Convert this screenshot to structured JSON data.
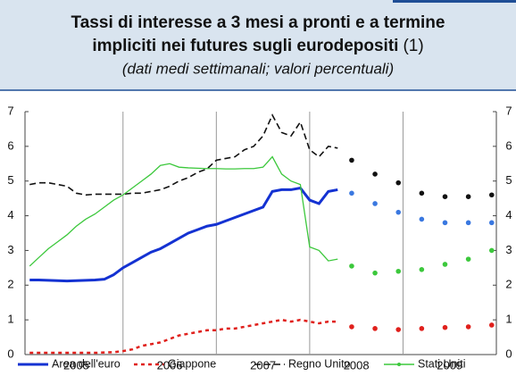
{
  "chart_data": {
    "type": "line",
    "title": "Tassi di interesse a 3 mesi a pronti e a termine impliciti nei futures sugli eurodepositi",
    "title_note": "(1)",
    "subtitle": "(dati medi settimanali; valori percentuali)",
    "x": [
      2005.0,
      2005.1,
      2005.2,
      2005.3,
      2005.4,
      2005.5,
      2005.6,
      2005.7,
      2005.8,
      2005.9,
      2006.0,
      2006.1,
      2006.2,
      2006.3,
      2006.4,
      2006.5,
      2006.6,
      2006.7,
      2006.8,
      2006.9,
      2007.0,
      2007.1,
      2007.2,
      2007.3,
      2007.4,
      2007.5,
      2007.6,
      2007.7,
      2007.8,
      2007.9,
      2008.0,
      2008.1,
      2008.2,
      2008.3
    ],
    "futures_x": [
      2008.45,
      2008.7,
      2008.95,
      2009.2,
      2009.45,
      2009.7,
      2009.95
    ],
    "series": [
      {
        "name": "Area dell'euro",
        "color": "#1432d2",
        "dash": "none",
        "width": 3,
        "values": [
          2.15,
          2.15,
          2.14,
          2.13,
          2.12,
          2.13,
          2.14,
          2.15,
          2.17,
          2.3,
          2.5,
          2.65,
          2.8,
          2.95,
          3.05,
          3.2,
          3.35,
          3.5,
          3.6,
          3.7,
          3.75,
          3.85,
          3.95,
          4.05,
          4.15,
          4.25,
          4.7,
          4.75,
          4.75,
          4.8,
          4.45,
          4.35,
          4.7,
          4.75
        ],
        "futures_color": "#3a78e0",
        "futures_values": [
          4.65,
          4.35,
          4.1,
          3.9,
          3.8,
          3.8,
          3.8
        ]
      },
      {
        "name": "Giappone",
        "color": "#e0201c",
        "dash": "4 4",
        "width": 2.5,
        "values": [
          0.05,
          0.05,
          0.05,
          0.05,
          0.05,
          0.05,
          0.05,
          0.05,
          0.06,
          0.07,
          0.1,
          0.15,
          0.25,
          0.3,
          0.35,
          0.45,
          0.55,
          0.6,
          0.65,
          0.7,
          0.7,
          0.75,
          0.75,
          0.8,
          0.85,
          0.9,
          0.95,
          1.0,
          0.95,
          1.0,
          0.95,
          0.9,
          0.95,
          0.95
        ],
        "futures_color": "#e0201c",
        "futures_values": [
          0.8,
          0.75,
          0.72,
          0.75,
          0.78,
          0.8,
          0.85
        ]
      },
      {
        "name": "Regno Unito",
        "color": "#111111",
        "dash": "7 4",
        "width": 1.6,
        "values": [
          4.9,
          4.95,
          4.95,
          4.9,
          4.85,
          4.65,
          4.6,
          4.62,
          4.62,
          4.62,
          4.62,
          4.65,
          4.65,
          4.7,
          4.75,
          4.85,
          5.0,
          5.1,
          5.25,
          5.35,
          5.6,
          5.65,
          5.7,
          5.9,
          6.0,
          6.3,
          6.9,
          6.4,
          6.3,
          6.7,
          5.9,
          5.7,
          6.0,
          5.95
        ],
        "futures_color": "#111111",
        "futures_values": [
          5.6,
          5.2,
          4.95,
          4.65,
          4.55,
          4.55,
          4.6
        ]
      },
      {
        "name": "Stati Uniti",
        "color": "#3cc83c",
        "dash": "none",
        "width": 1.3,
        "values": [
          2.55,
          2.8,
          3.05,
          3.25,
          3.45,
          3.7,
          3.9,
          4.05,
          4.25,
          4.45,
          4.6,
          4.8,
          5.0,
          5.2,
          5.45,
          5.5,
          5.4,
          5.38,
          5.37,
          5.36,
          5.36,
          5.35,
          5.35,
          5.36,
          5.36,
          5.4,
          5.7,
          5.2,
          5.0,
          4.9,
          3.1,
          3.0,
          2.7,
          2.75
        ],
        "futures_color": "#3cc83c",
        "futures_values": [
          2.55,
          2.35,
          2.4,
          2.45,
          2.6,
          2.75,
          3.0
        ]
      }
    ],
    "xlim": [
      2004.95,
      2010.0
    ],
    "xticks": [
      2006,
      2007,
      2008,
      2009
    ],
    "year_labels": [
      {
        "value": 2005.5,
        "label": "2005"
      },
      {
        "value": 2006.5,
        "label": "2006"
      },
      {
        "value": 2007.5,
        "label": "2007"
      },
      {
        "value": 2008.5,
        "label": "2008"
      },
      {
        "value": 2009.5,
        "label": "2009"
      }
    ],
    "ylim": [
      0,
      7
    ],
    "yticks": [
      0,
      1,
      2,
      3,
      4,
      5,
      6,
      7
    ]
  }
}
